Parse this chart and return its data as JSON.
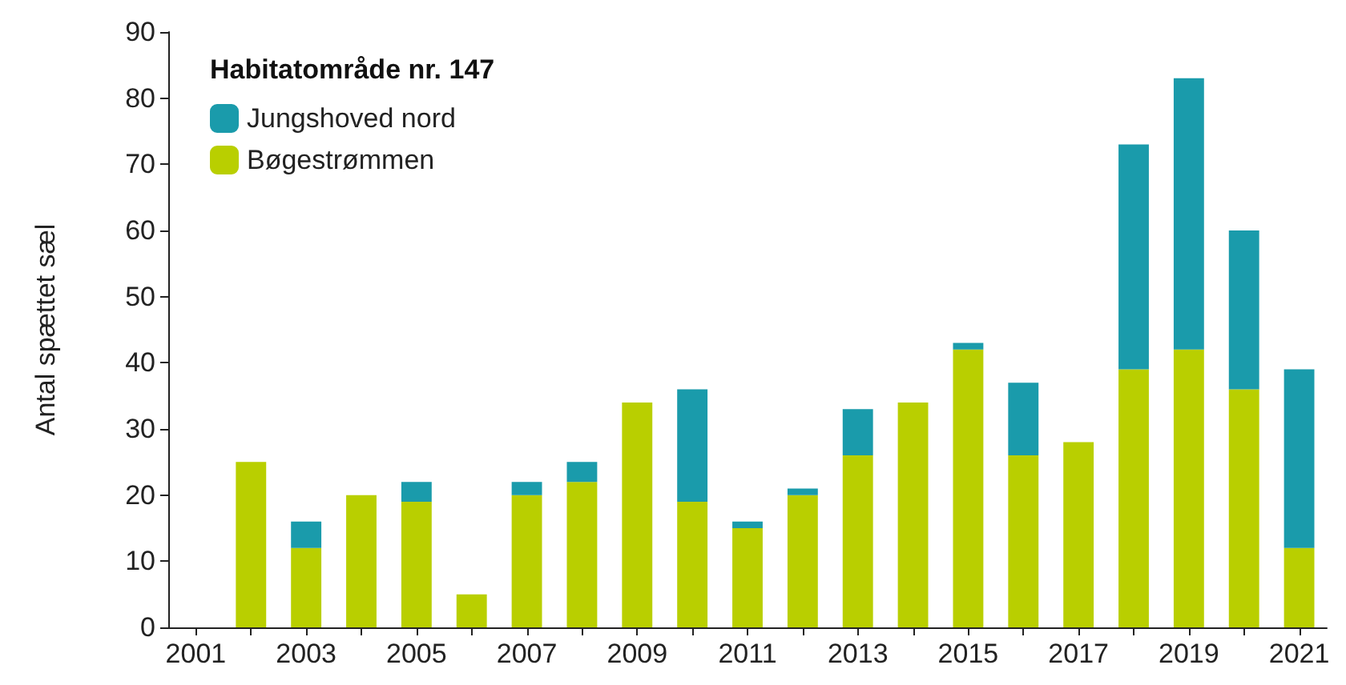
{
  "chart_data": {
    "type": "bar",
    "stacked": true,
    "legend_title": "Habitatområde nr. 147",
    "ylabel": "Antal spættet sæl",
    "categories": [
      "2001",
      null,
      "2003",
      null,
      "2005",
      null,
      "2007",
      null,
      "2009",
      null,
      "2011",
      null,
      "2013",
      null,
      "2015",
      null,
      "2017",
      null,
      "2019",
      null,
      "2021"
    ],
    "series": [
      {
        "name": "Bøgestrømmen",
        "color": "#b9cf00",
        "values": [
          null,
          25,
          12,
          20,
          19,
          5,
          20,
          22,
          34,
          19,
          15,
          20,
          26,
          34,
          42,
          26,
          28,
          39,
          42,
          36,
          12
        ]
      },
      {
        "name": "Jungshoved nord",
        "color": "#1a9bab",
        "values": [
          null,
          null,
          4,
          null,
          3,
          null,
          2,
          3,
          null,
          17,
          1,
          1,
          7,
          null,
          1,
          11,
          null,
          34,
          41,
          24,
          27
        ]
      }
    ],
    "ylim": [
      0,
      90
    ],
    "yticks": [
      0,
      10,
      20,
      30,
      40,
      50,
      60,
      70,
      80,
      90
    ],
    "grid": false,
    "legend": "top left"
  }
}
